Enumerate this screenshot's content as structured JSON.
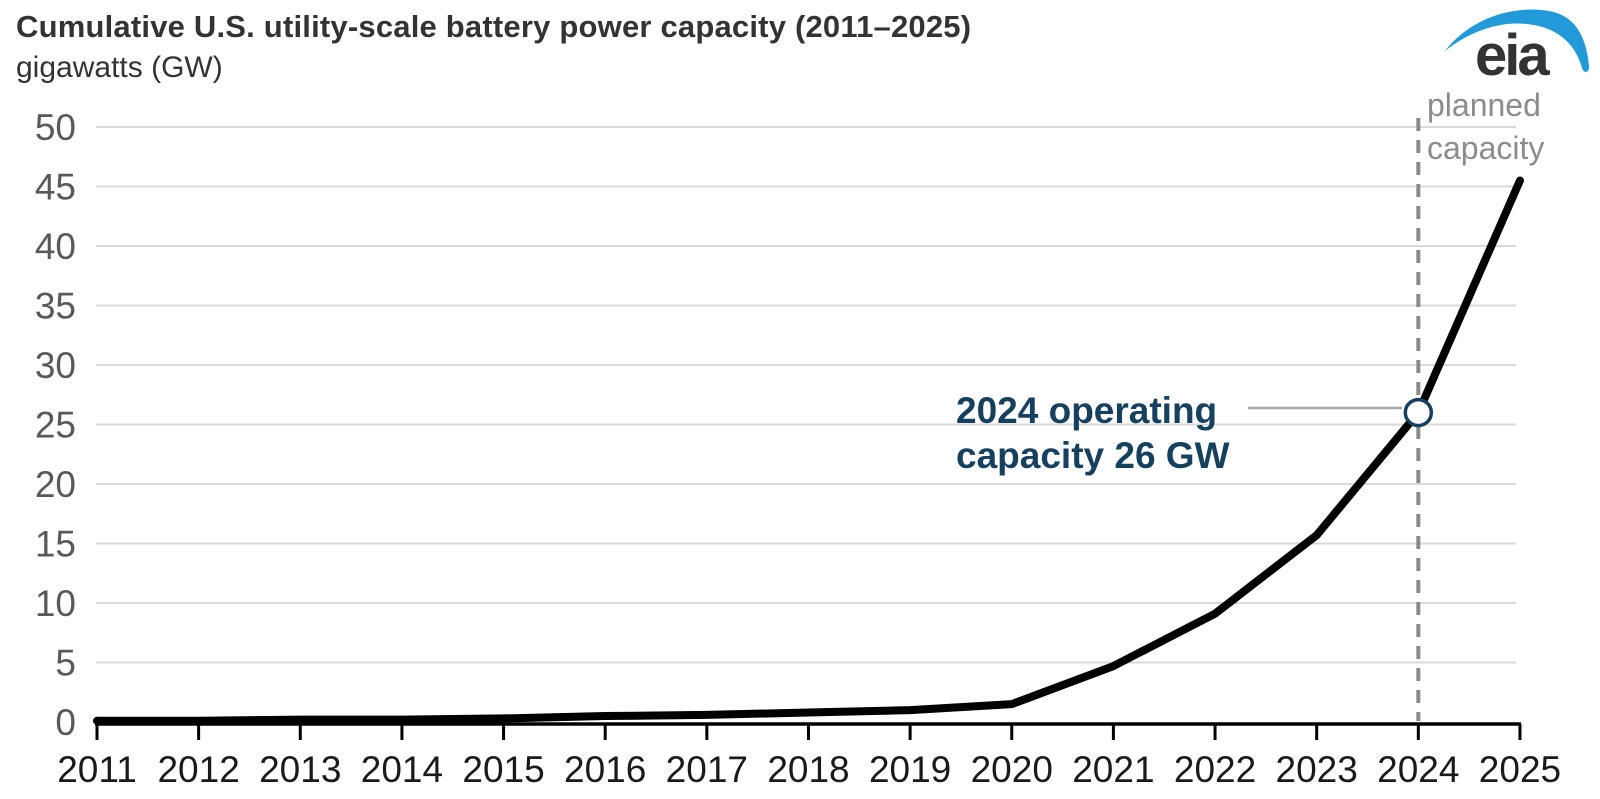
{
  "header": {
    "title": "Cumulative U.S. utility-scale battery power capacity (2011–2025)",
    "subtitle": "gigawatts (GW)"
  },
  "logo": {
    "text": "eia"
  },
  "annotations": {
    "operating": "2024 operating\ncapacity 26 GW",
    "planned": "planned\ncapacity"
  },
  "colors": {
    "title_text": "#333333",
    "line": "#000000",
    "grid": "#d9d9d9",
    "axis": "#000000",
    "y_tick_label": "#595959",
    "x_tick_label": "#1a1a1a",
    "dashed_line": "#8a8a8a",
    "annotation_navy": "#15405e",
    "planned_gray": "#8c8c8c",
    "leader": "#a6a6a6",
    "marker_fill": "#ffffff",
    "brand_blue": "#2299d8"
  },
  "chart_data": {
    "type": "line",
    "title": "Cumulative U.S. utility-scale battery power capacity (2011–2025)",
    "ylabel": "gigawatts (GW)",
    "xlabel": "",
    "x": [
      2011,
      2012,
      2013,
      2014,
      2015,
      2016,
      2017,
      2018,
      2019,
      2020,
      2021,
      2022,
      2023,
      2024,
      2025
    ],
    "series": [
      {
        "name": "cumulative battery power capacity (GW)",
        "values": [
          0.1,
          0.1,
          0.2,
          0.2,
          0.3,
          0.5,
          0.6,
          0.8,
          1.0,
          1.5,
          4.7,
          9.1,
          15.7,
          26,
          45.5
        ]
      }
    ],
    "ylim": [
      0,
      50
    ],
    "yticks": [
      0,
      5,
      10,
      15,
      20,
      25,
      30,
      35,
      40,
      45,
      50
    ],
    "grid": true,
    "legend": "none",
    "marker": {
      "x": 2024,
      "y": 26,
      "label": "2024 operating capacity 26 GW"
    },
    "dashed_vline_x": 2024,
    "dashed_vline_label": "planned capacity",
    "note": "2025 value is planned capacity; values through 2024 are operating capacity"
  }
}
